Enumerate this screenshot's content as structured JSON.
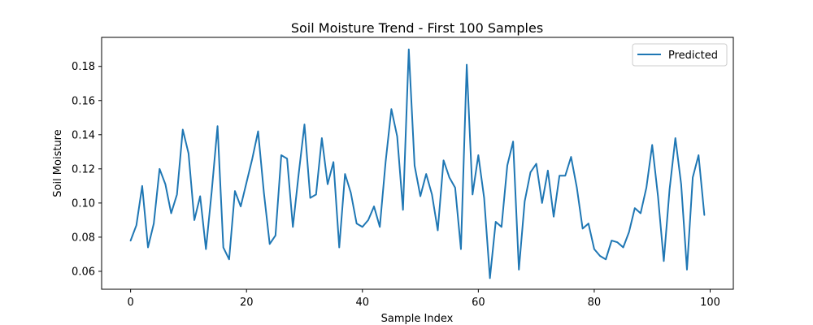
{
  "chart_data": {
    "type": "line",
    "title": "Soil Moisture Trend - First 100 Samples",
    "xlabel": "Sample Index",
    "ylabel": "Soil Moisture",
    "xlim": [
      -5,
      104
    ],
    "ylim": [
      0.0495,
      0.197
    ],
    "xticks": [
      0,
      20,
      40,
      60,
      80,
      100
    ],
    "xtick_labels": [
      "0",
      "20",
      "40",
      "60",
      "80",
      "100"
    ],
    "yticks": [
      0.06,
      0.08,
      0.1,
      0.12,
      0.14,
      0.16,
      0.18
    ],
    "ytick_labels": [
      "0.06",
      "0.08",
      "0.10",
      "0.12",
      "0.14",
      "0.16",
      "0.18"
    ],
    "grid": false,
    "legend": {
      "position": "top-right"
    },
    "series": [
      {
        "name": "Predicted",
        "color": "#1f77b4",
        "x": [
          0,
          1,
          2,
          3,
          4,
          5,
          6,
          7,
          8,
          9,
          10,
          11,
          12,
          13,
          14,
          15,
          16,
          17,
          18,
          19,
          20,
          21,
          22,
          23,
          24,
          25,
          26,
          27,
          28,
          29,
          30,
          31,
          32,
          33,
          34,
          35,
          36,
          37,
          38,
          39,
          40,
          41,
          42,
          43,
          44,
          45,
          46,
          47,
          48,
          49,
          50,
          51,
          52,
          53,
          54,
          55,
          56,
          57,
          58,
          59,
          60,
          61,
          62,
          63,
          64,
          65,
          66,
          67,
          68,
          69,
          70,
          71,
          72,
          73,
          74,
          75,
          76,
          77,
          78,
          79,
          80,
          81,
          82,
          83,
          84,
          85,
          86,
          87,
          88,
          89,
          90,
          91,
          92,
          93,
          94,
          95,
          96,
          97,
          98,
          99
        ],
        "values": [
          0.078,
          0.087,
          0.11,
          0.074,
          0.088,
          0.12,
          0.111,
          0.094,
          0.105,
          0.143,
          0.129,
          0.09,
          0.104,
          0.073,
          0.107,
          0.145,
          0.074,
          0.067,
          0.107,
          0.098,
          0.112,
          0.126,
          0.142,
          0.106,
          0.076,
          0.081,
          0.128,
          0.126,
          0.086,
          0.117,
          0.146,
          0.103,
          0.105,
          0.138,
          0.111,
          0.124,
          0.074,
          0.117,
          0.106,
          0.088,
          0.086,
          0.09,
          0.098,
          0.086,
          0.124,
          0.155,
          0.139,
          0.096,
          0.19,
          0.122,
          0.104,
          0.117,
          0.105,
          0.084,
          0.125,
          0.115,
          0.109,
          0.073,
          0.181,
          0.105,
          0.128,
          0.103,
          0.056,
          0.089,
          0.086,
          0.122,
          0.136,
          0.061,
          0.101,
          0.118,
          0.123,
          0.1,
          0.119,
          0.092,
          0.116,
          0.116,
          0.127,
          0.109,
          0.085,
          0.088,
          0.073,
          0.069,
          0.067,
          0.078,
          0.077,
          0.074,
          0.083,
          0.097,
          0.094,
          0.109,
          0.134,
          0.104,
          0.066,
          0.108,
          0.138,
          0.111,
          0.061,
          0.115,
          0.128,
          0.093
        ]
      }
    ]
  }
}
